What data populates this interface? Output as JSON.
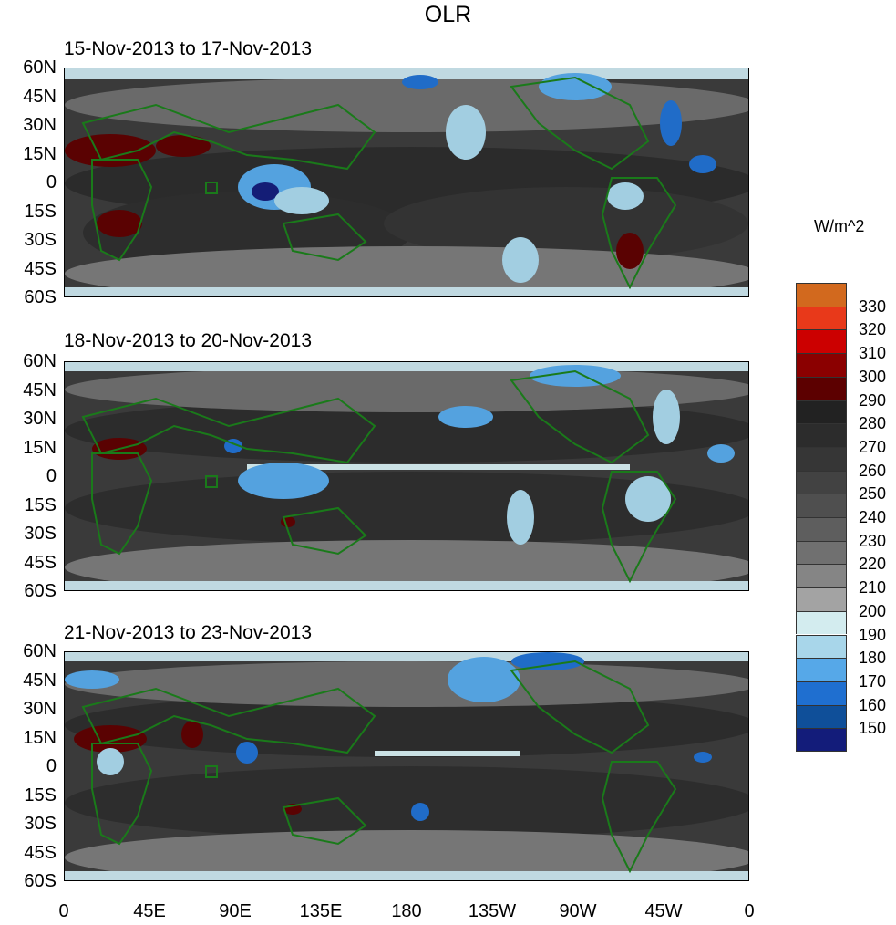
{
  "figure": {
    "title": "OLR",
    "units": "W/m^2"
  },
  "panels": [
    {
      "title": "15-Nov-2013 to 17-Nov-2013"
    },
    {
      "title": "18-Nov-2013 to 20-Nov-2013"
    },
    {
      "title": "21-Nov-2013 to 23-Nov-2013"
    }
  ],
  "axes": {
    "lat_labels": [
      "60N",
      "45N",
      "30N",
      "15N",
      "0",
      "15S",
      "30S",
      "45S",
      "60S"
    ],
    "lon_labels": [
      "0",
      "45E",
      "90E",
      "135E",
      "180",
      "135W",
      "90W",
      "45W",
      "0"
    ]
  },
  "colorbar": {
    "levels": [
      "330",
      "320",
      "310",
      "300",
      "290",
      "280",
      "270",
      "260",
      "250",
      "240",
      "230",
      "220",
      "210",
      "200",
      "190",
      "180",
      "170",
      "160",
      "150"
    ],
    "colors": [
      "#d2691e",
      "#e8391a",
      "#cc0000",
      "#8b0000",
      "#5c0000",
      "#222222",
      "#2c2c2c",
      "#363636",
      "#424242",
      "#4f4f4f",
      "#5e5e5e",
      "#707070",
      "#858585",
      "#a3a3a3",
      "#d3ecef",
      "#a8d6ea",
      "#56a8e8",
      "#1f6fd0",
      "#0f4f99",
      "#131c7a"
    ]
  },
  "map_colors": {
    "land_outline": "#1a7a1a",
    "clear_sky": "#2f2f2f"
  }
}
